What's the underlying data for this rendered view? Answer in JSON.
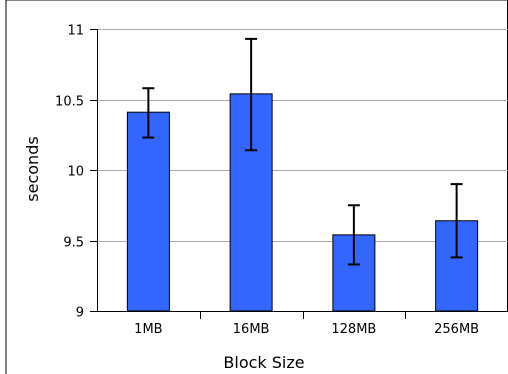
{
  "chart_data": {
    "type": "bar",
    "title": "",
    "xlabel": "Block Size",
    "ylabel": "seconds",
    "categories": [
      "1MB",
      "16MB",
      "128MB",
      "256MB"
    ],
    "values": [
      10.41,
      10.54,
      9.54,
      9.64
    ],
    "error_low": [
      10.23,
      10.14,
      9.33,
      9.38
    ],
    "error_high": [
      10.58,
      10.93,
      9.75,
      9.9
    ],
    "ylim": [
      9,
      11
    ],
    "yticks": [
      9,
      9.5,
      10,
      10.5,
      11
    ],
    "ytick_labels": [
      "9",
      "9.5",
      "10",
      "10.5",
      "11"
    ],
    "grid": {
      "y": true,
      "x": false
    },
    "bar_color": "#3366ff",
    "legend": "none"
  }
}
